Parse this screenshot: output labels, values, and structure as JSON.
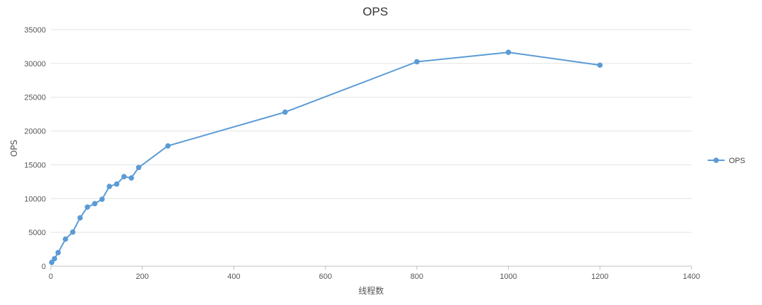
{
  "chart_data": {
    "type": "line",
    "title": "OPS",
    "xlabel": "线程数",
    "ylabel": "OPS",
    "xlim": [
      0,
      1400
    ],
    "ylim": [
      0,
      35000
    ],
    "x_ticks": [
      "0",
      "200",
      "400",
      "600",
      "800",
      "1000",
      "1200",
      "1400"
    ],
    "y_ticks": [
      "0",
      "5000",
      "10000",
      "15000",
      "20000",
      "25000",
      "30000",
      "35000"
    ],
    "grid": true,
    "legend_position": "right",
    "series": [
      {
        "name": "OPS",
        "color": "#5b9bd5",
        "points": [
          {
            "x": 2,
            "y": 550
          },
          {
            "x": 8,
            "y": 1100
          },
          {
            "x": 16,
            "y": 2000
          },
          {
            "x": 32,
            "y": 4000
          },
          {
            "x": 48,
            "y": 5050
          },
          {
            "x": 64,
            "y": 7150
          },
          {
            "x": 80,
            "y": 8750
          },
          {
            "x": 96,
            "y": 9250
          },
          {
            "x": 112,
            "y": 9900
          },
          {
            "x": 128,
            "y": 11800
          },
          {
            "x": 144,
            "y": 12150
          },
          {
            "x": 160,
            "y": 13250
          },
          {
            "x": 176,
            "y": 13050
          },
          {
            "x": 192,
            "y": 14600
          },
          {
            "x": 256,
            "y": 17800
          },
          {
            "x": 512,
            "y": 22800
          },
          {
            "x": 800,
            "y": 30250
          },
          {
            "x": 1000,
            "y": 31650
          },
          {
            "x": 1200,
            "y": 29750
          }
        ]
      }
    ]
  }
}
